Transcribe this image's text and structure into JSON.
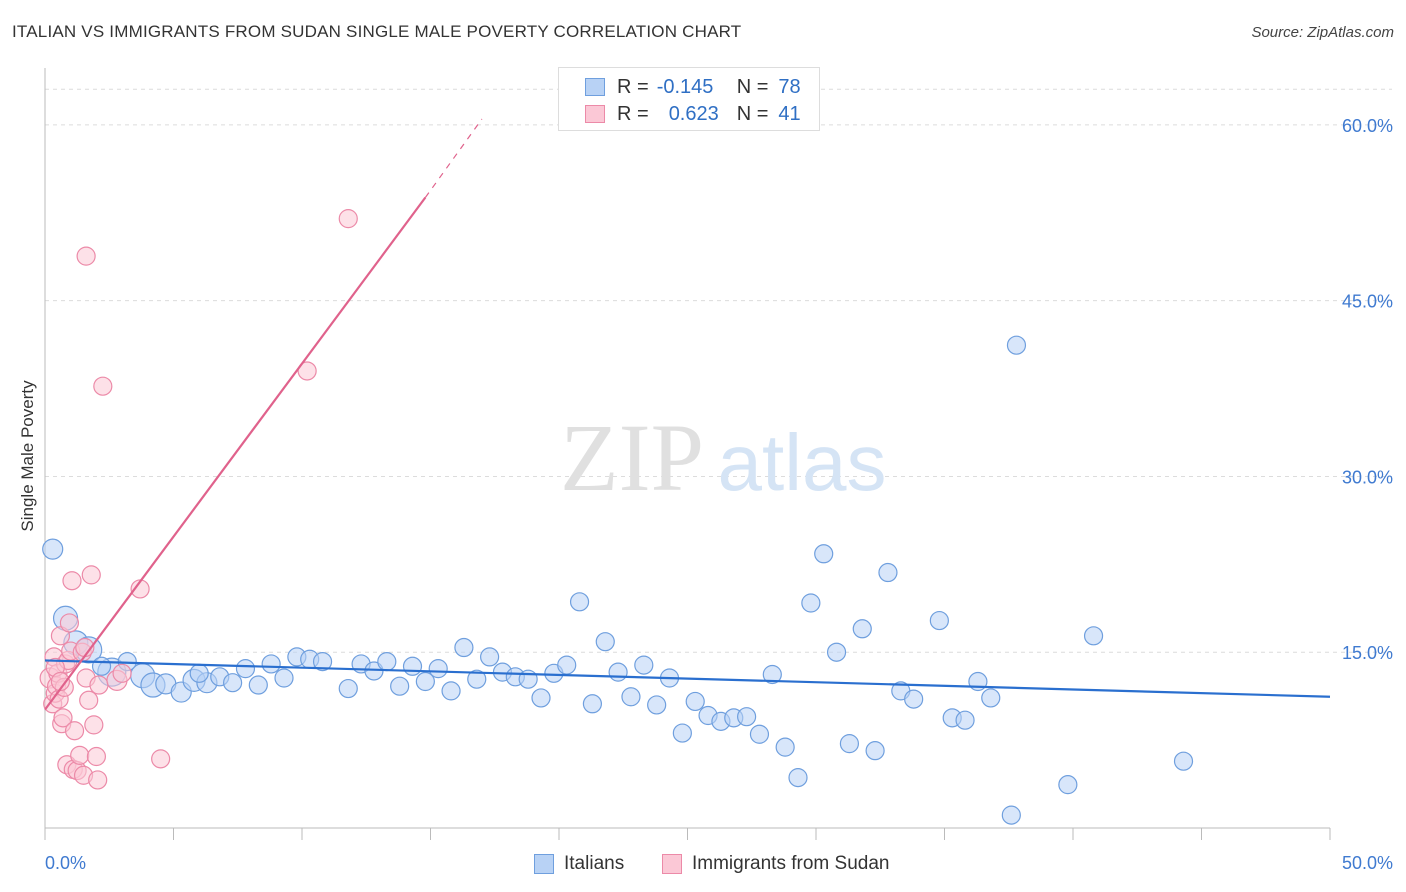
{
  "title": "ITALIAN VS IMMIGRANTS FROM SUDAN SINGLE MALE POVERTY CORRELATION CHART",
  "source": "Source: ZipAtlas.com",
  "watermark": {
    "zip": "ZIP",
    "atlas": "atlas"
  },
  "legend": {
    "r_label": "R =",
    "n_label": "N =",
    "series": [
      {
        "r": "-0.145",
        "n": "78",
        "fill": "#b8d2f5",
        "stroke": "#6f9fde"
      },
      {
        "r": "0.623",
        "n": "41",
        "fill": "#fbc8d6",
        "stroke": "#ec8aa8"
      }
    ]
  },
  "bottom_legend": [
    "Italians",
    "Immigrants from Sudan"
  ],
  "chart_data": {
    "type": "scatter",
    "ylabel": "Single Male Poverty",
    "xlim": [
      0,
      50
    ],
    "ylim": [
      0,
      64
    ],
    "x_ticks": [
      "0.0%",
      "50.0%"
    ],
    "y_ticks": [
      {
        "value": 15,
        "label": "15.0%"
      },
      {
        "value": 30,
        "label": "30.0%"
      },
      {
        "value": 45,
        "label": "45.0%"
      },
      {
        "value": 60,
        "label": "60.0%"
      }
    ],
    "grid": true,
    "series": [
      {
        "name": "Italians",
        "color": "#6f9fde",
        "fill": "#b8d2f5",
        "trend": {
          "x": [
            0,
            50
          ],
          "y": [
            14.3,
            11.2
          ]
        },
        "points": [
          [
            0.3,
            23.8,
            10
          ],
          [
            0.8,
            17.9,
            12
          ],
          [
            1.2,
            15.8,
            12
          ],
          [
            1.7,
            15.2,
            13
          ],
          [
            2.6,
            13.3,
            14
          ],
          [
            3.8,
            13.0,
            12
          ],
          [
            4.2,
            12.2,
            12
          ],
          [
            4.7,
            12.3,
            10
          ],
          [
            5.3,
            11.6,
            10
          ],
          [
            5.8,
            12.6,
            11
          ],
          [
            6.3,
            12.4,
            10
          ],
          [
            6.8,
            12.9,
            9
          ],
          [
            7.3,
            12.4,
            9
          ],
          [
            7.8,
            13.6,
            9
          ],
          [
            8.3,
            12.2,
            9
          ],
          [
            8.8,
            14.0,
            9
          ],
          [
            9.3,
            12.8,
            9
          ],
          [
            9.8,
            14.6,
            9
          ],
          [
            10.3,
            14.4,
            9
          ],
          [
            10.8,
            14.2,
            9
          ],
          [
            11.8,
            11.9,
            9
          ],
          [
            12.3,
            14.0,
            9
          ],
          [
            12.8,
            13.4,
            9
          ],
          [
            13.3,
            14.2,
            9
          ],
          [
            13.8,
            12.1,
            9
          ],
          [
            14.3,
            13.8,
            9
          ],
          [
            14.8,
            12.5,
            9
          ],
          [
            15.3,
            13.6,
            9
          ],
          [
            15.8,
            11.7,
            9
          ],
          [
            16.3,
            15.4,
            9
          ],
          [
            16.8,
            12.7,
            9
          ],
          [
            17.3,
            14.6,
            9
          ],
          [
            17.8,
            13.3,
            9
          ],
          [
            18.3,
            12.9,
            9
          ],
          [
            18.8,
            12.7,
            9
          ],
          [
            19.3,
            11.1,
            9
          ],
          [
            19.8,
            13.2,
            9
          ],
          [
            20.3,
            13.9,
            9
          ],
          [
            20.8,
            19.3,
            9
          ],
          [
            21.3,
            10.6,
            9
          ],
          [
            21.8,
            15.9,
            9
          ],
          [
            22.3,
            13.3,
            9
          ],
          [
            22.8,
            11.2,
            9
          ],
          [
            23.3,
            13.9,
            9
          ],
          [
            23.8,
            10.5,
            9
          ],
          [
            24.3,
            12.8,
            9
          ],
          [
            24.8,
            8.1,
            9
          ],
          [
            25.3,
            10.8,
            9
          ],
          [
            25.8,
            9.6,
            9
          ],
          [
            26.3,
            9.1,
            9
          ],
          [
            26.8,
            9.4,
            9
          ],
          [
            27.3,
            9.5,
            9
          ],
          [
            27.8,
            8.0,
            9
          ],
          [
            28.3,
            13.1,
            9
          ],
          [
            28.8,
            6.9,
            9
          ],
          [
            29.3,
            4.3,
            9
          ],
          [
            29.8,
            19.2,
            9
          ],
          [
            30.3,
            23.4,
            9
          ],
          [
            30.8,
            15.0,
            9
          ],
          [
            31.3,
            7.2,
            9
          ],
          [
            31.8,
            17.0,
            9
          ],
          [
            32.3,
            6.6,
            9
          ],
          [
            32.8,
            21.8,
            9
          ],
          [
            33.3,
            11.7,
            9
          ],
          [
            33.8,
            11.0,
            9
          ],
          [
            34.8,
            17.7,
            9
          ],
          [
            35.3,
            9.4,
            9
          ],
          [
            35.8,
            9.2,
            9
          ],
          [
            36.3,
            12.5,
            9
          ],
          [
            36.8,
            11.1,
            9
          ],
          [
            37.8,
            41.2,
            9
          ],
          [
            37.6,
            1.1,
            9
          ],
          [
            39.8,
            3.7,
            9
          ],
          [
            40.8,
            16.4,
            9
          ],
          [
            44.3,
            5.7,
            9
          ],
          [
            2.2,
            13.8,
            9
          ],
          [
            3.2,
            14.2,
            9
          ],
          [
            6.0,
            13.2,
            9
          ]
        ]
      },
      {
        "name": "Immigrants from Sudan",
        "color": "#ec8aa8",
        "fill": "#fbc8d6",
        "trend": {
          "x": [
            0,
            14.8
          ],
          "y": [
            10.1,
            53.8
          ],
          "dash_to": [
            17.0,
            60.5
          ]
        },
        "points": [
          [
            0.2,
            12.8,
            10
          ],
          [
            0.3,
            10.6,
            9
          ],
          [
            0.35,
            14.6,
            9
          ],
          [
            0.4,
            11.5,
            9
          ],
          [
            0.45,
            12.1,
            9
          ],
          [
            0.5,
            13.2,
            9
          ],
          [
            0.55,
            11.0,
            9
          ],
          [
            0.6,
            16.4,
            9
          ],
          [
            0.65,
            8.9,
            9
          ],
          [
            0.7,
            9.4,
            9
          ],
          [
            0.75,
            12.0,
            9
          ],
          [
            0.8,
            14.0,
            9
          ],
          [
            0.85,
            5.4,
            9
          ],
          [
            0.9,
            14.3,
            9
          ],
          [
            0.95,
            17.5,
            9
          ],
          [
            1.0,
            15.1,
            9
          ],
          [
            1.05,
            21.1,
            9
          ],
          [
            1.1,
            5.0,
            9
          ],
          [
            1.15,
            8.3,
            9
          ],
          [
            1.25,
            4.9,
            9
          ],
          [
            1.35,
            6.2,
            9
          ],
          [
            1.45,
            15.0,
            9
          ],
          [
            1.5,
            4.5,
            9
          ],
          [
            1.55,
            15.4,
            9
          ],
          [
            1.6,
            12.8,
            9
          ],
          [
            1.7,
            10.9,
            9
          ],
          [
            1.8,
            21.6,
            9
          ],
          [
            1.9,
            8.8,
            9
          ],
          [
            2.0,
            6.1,
            9
          ],
          [
            2.05,
            4.1,
            9
          ],
          [
            2.1,
            12.2,
            9
          ],
          [
            2.25,
            37.7,
            9
          ],
          [
            2.8,
            12.6,
            10
          ],
          [
            3.0,
            13.2,
            9
          ],
          [
            3.7,
            20.4,
            9
          ],
          [
            4.5,
            5.9,
            9
          ],
          [
            1.6,
            48.8,
            9
          ],
          [
            10.2,
            39.0,
            9
          ],
          [
            11.8,
            52.0,
            9
          ],
          [
            0.4,
            13.7,
            9
          ],
          [
            0.6,
            12.5,
            9
          ]
        ]
      }
    ]
  }
}
